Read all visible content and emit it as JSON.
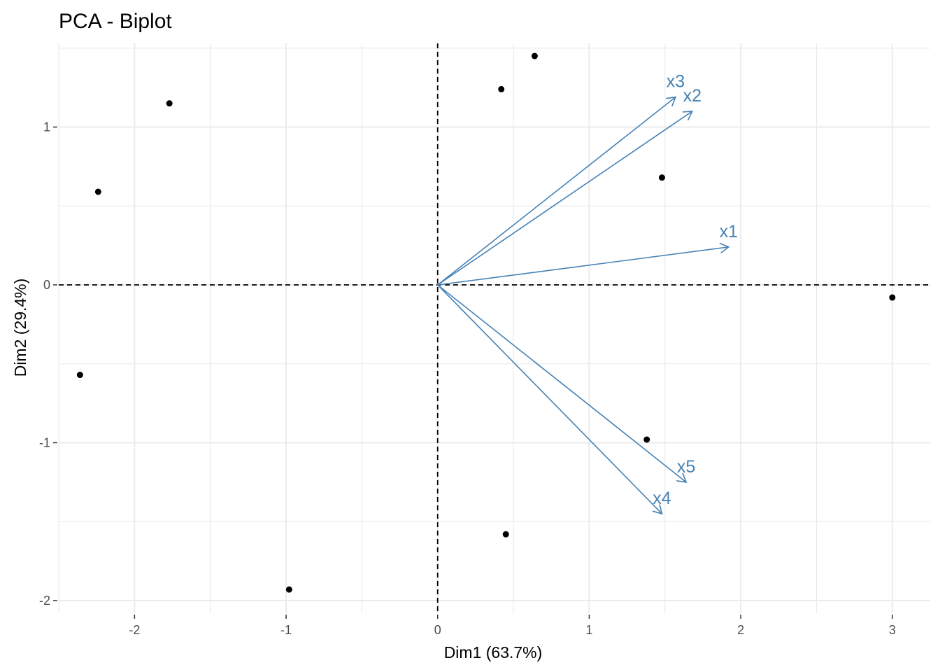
{
  "chart_data": {
    "type": "scatter",
    "title": "PCA - Biplot",
    "xlabel": "Dim1 (63.7%)",
    "ylabel": "Dim2 (29.4%)",
    "xlim": [
      -2.5,
      3.25
    ],
    "ylim": [
      -2.08,
      1.53
    ],
    "x_ticks": [
      -2,
      -1,
      0,
      1,
      2,
      3
    ],
    "x_tick_labels": [
      "-2",
      "-1",
      "0",
      "1",
      "2",
      "3"
    ],
    "y_ticks": [
      -2,
      -1,
      0,
      1
    ],
    "y_tick_labels": [
      "-2",
      "-1",
      "0",
      "1"
    ],
    "grid": true,
    "points": [
      {
        "x": -2.36,
        "y": -0.57
      },
      {
        "x": -2.24,
        "y": 0.59
      },
      {
        "x": -1.77,
        "y": 1.15
      },
      {
        "x": -0.98,
        "y": -1.93
      },
      {
        "x": 0.42,
        "y": 1.24
      },
      {
        "x": 0.64,
        "y": 1.45
      },
      {
        "x": 1.48,
        "y": 0.68
      },
      {
        "x": 1.38,
        "y": -0.98
      },
      {
        "x": 0.45,
        "y": -1.58
      },
      {
        "x": 3.0,
        "y": -0.08
      }
    ],
    "variables": [
      {
        "name": "x1",
        "x": 1.92,
        "y": 0.24
      },
      {
        "name": "x2",
        "x": 1.68,
        "y": 1.1
      },
      {
        "name": "x3",
        "x": 1.57,
        "y": 1.19
      },
      {
        "name": "x4",
        "x": 1.48,
        "y": -1.45
      },
      {
        "name": "x5",
        "x": 1.64,
        "y": -1.25
      }
    ],
    "colors": {
      "points": "#000000",
      "arrows": "#4682B4",
      "grid": "#ebebeb",
      "zero_lines": "#000000"
    }
  }
}
